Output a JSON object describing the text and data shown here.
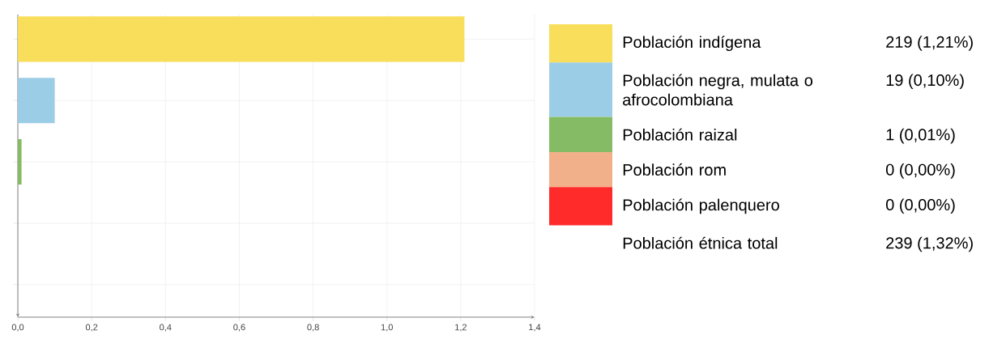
{
  "chart_data": {
    "type": "bar",
    "orientation": "horizontal",
    "categories": [
      null,
      null,
      null,
      null,
      null
    ],
    "series": [
      {
        "name": "Población indígena",
        "color": "#f8de5a",
        "values": [
          1.21,
          null,
          null,
          null,
          null
        ]
      },
      {
        "name": "Población negra, mulata o afrocolombiana",
        "color": "#9ccde6",
        "values": [
          null,
          0.1,
          null,
          null,
          null
        ]
      },
      {
        "name": "Población raizal",
        "color": "#85bb65",
        "values": [
          null,
          null,
          0.01,
          null,
          null
        ]
      },
      {
        "name": "Población rom",
        "color": "#f2b08a",
        "values": [
          null,
          null,
          null,
          0,
          null
        ]
      },
      {
        "name": "Población palenquero",
        "color": "#ff2b2b",
        "values": [
          null,
          null,
          null,
          null,
          0
        ]
      }
    ],
    "xlim": [
      0,
      1.4
    ],
    "xticks": [
      {
        "value": 0,
        "label": "0,0"
      },
      {
        "value": 0.2,
        "label": "0,2"
      },
      {
        "value": 0.4,
        "label": "0,4"
      },
      {
        "value": 0.6,
        "label": "0,6"
      },
      {
        "value": 0.8,
        "label": "0,8"
      },
      {
        "value": 1.0,
        "label": "1,0"
      },
      {
        "value": 1.2,
        "label": "1,2"
      },
      {
        "value": 1.4,
        "label": "1,4"
      }
    ],
    "annotations": [
      "219 (1,21%)",
      "19 (0,10%)",
      "1 (0,01%)",
      "0 (0,00%)",
      "0 (0,00%)",
      "Población étnica total",
      "239 (1,32%)"
    ],
    "grid": true,
    "legend": "right",
    "tick_labels": "x"
  }
}
